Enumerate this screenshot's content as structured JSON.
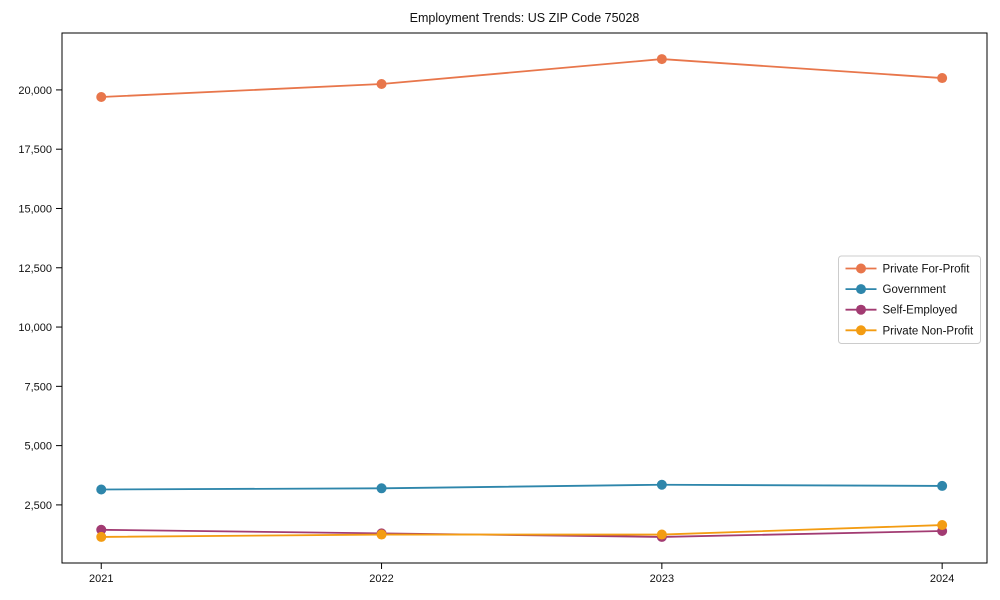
{
  "window": {
    "background_color": "#ffffff",
    "text_color": "#111111",
    "spine_color": "#000000",
    "legend_border_color": "#cccccc"
  },
  "chart_data": {
    "type": "line",
    "title": "Employment Trends: US ZIP Code 75028",
    "xlabel": "",
    "ylabel": "",
    "x": [
      2021,
      2022,
      2023,
      2024
    ],
    "x_tick_labels": [
      "2021",
      "2022",
      "2023",
      "2024"
    ],
    "y_ticks": [
      2500,
      5000,
      7500,
      10000,
      12500,
      15000,
      17500,
      20000
    ],
    "y_tick_labels": [
      "2,500",
      "5,000",
      "7,500",
      "10,000",
      "12,500",
      "15,000",
      "17,500",
      "20,000"
    ],
    "xlim": [
      2020.86,
      2024.16
    ],
    "ylim": [
      50,
      22400
    ],
    "grid": false,
    "legend_position": "center-right",
    "marker": "circle",
    "series": [
      {
        "name": "Private For-Profit",
        "color": "#E8764B",
        "values": [
          19700,
          20250,
          21300,
          20500
        ]
      },
      {
        "name": "Government",
        "color": "#2E86AB",
        "values": [
          3150,
          3200,
          3350,
          3300
        ]
      },
      {
        "name": "Self-Employed",
        "color": "#A23B72",
        "values": [
          1450,
          1300,
          1150,
          1400
        ]
      },
      {
        "name": "Private Non-Profit",
        "color": "#F39C12",
        "values": [
          1150,
          1250,
          1250,
          1650
        ]
      }
    ]
  }
}
